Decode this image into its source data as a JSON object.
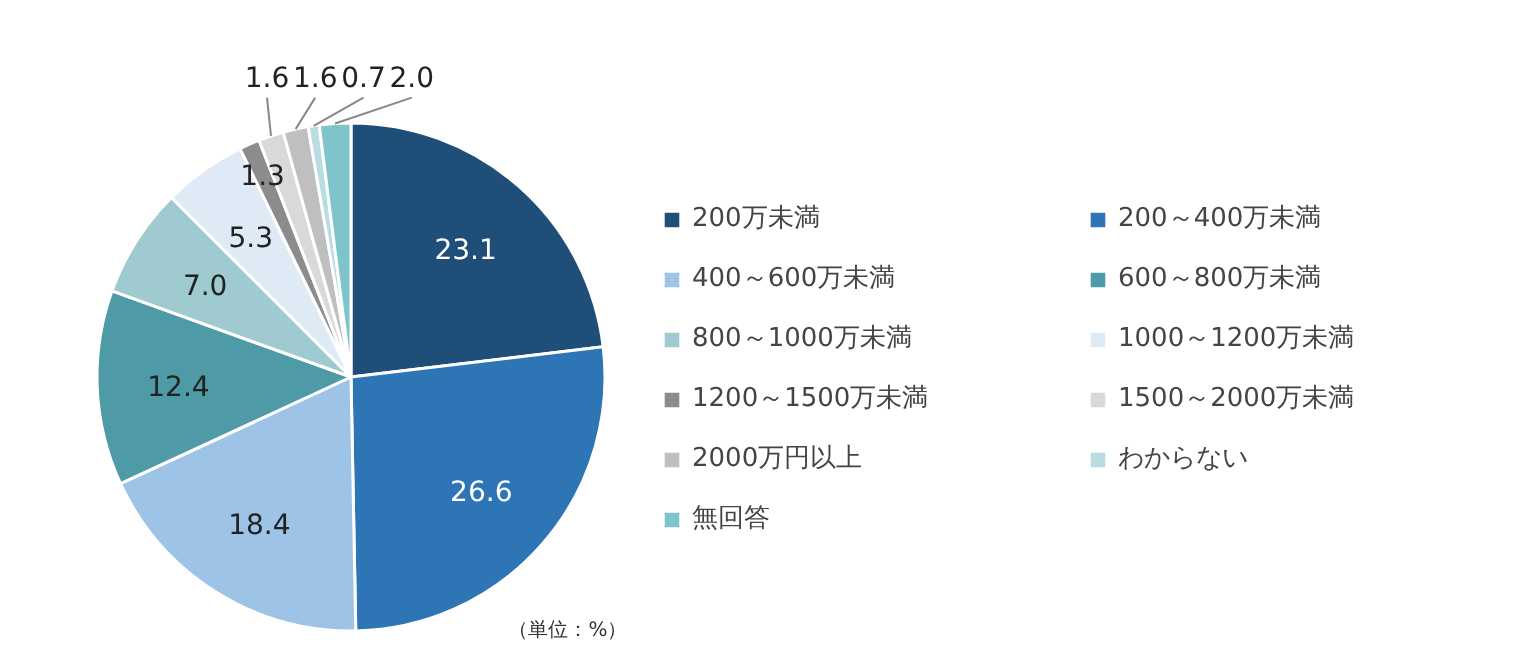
{
  "chart_data": {
    "type": "pie",
    "categories": [
      "200万未満",
      "200～400万未満",
      "400～600万未満",
      "600～800万未満",
      "800～1000万未満",
      "1000～1200万未満",
      "1200～1500万未満",
      "1500～2000万未満",
      "2000万円以上",
      "わからない",
      "無回答"
    ],
    "values": [
      23.1,
      26.6,
      18.4,
      12.4,
      7.0,
      5.3,
      1.3,
      1.6,
      1.6,
      0.7,
      2.0
    ],
    "colors": [
      "#1f4e79",
      "#2e75b6",
      "#9dc3e6",
      "#4e9aa6",
      "#9fcad0",
      "#deebf7",
      "#8c8c8c",
      "#d9d9d9",
      "#bfbfbf",
      "#b7dde3",
      "#7fc3cb"
    ],
    "data_labels": true,
    "value_labels": [
      "23.1",
      "26.6",
      "18.4",
      "12.4",
      "7.0",
      "5.3",
      "1.3",
      "1.6",
      "1.6",
      "0.7",
      "2.0"
    ],
    "legend": "right",
    "annotations": [
      "（単位：%）"
    ]
  }
}
